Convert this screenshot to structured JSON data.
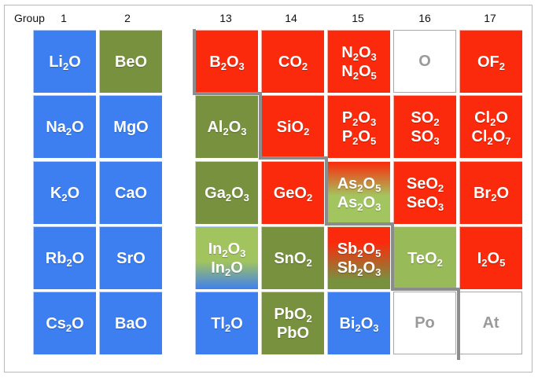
{
  "headers": {
    "group_label": "Group",
    "numbers": [
      "1",
      "2",
      "13",
      "14",
      "15",
      "16",
      "17"
    ]
  },
  "cells": [
    {
      "row": 0,
      "col": 0,
      "color": "blue",
      "lines": [
        [
          [
            "Li",
            ""
          ],
          [
            "",
            "2"
          ],
          [
            "O",
            ""
          ]
        ]
      ]
    },
    {
      "row": 0,
      "col": 1,
      "color": "green",
      "lines": [
        [
          [
            "BeO",
            ""
          ]
        ]
      ]
    },
    {
      "row": 0,
      "col": 2,
      "color": "red",
      "lines": [
        [
          [
            "B",
            ""
          ],
          [
            "",
            "2"
          ],
          [
            "O",
            ""
          ],
          [
            "",
            "3"
          ]
        ]
      ]
    },
    {
      "row": 0,
      "col": 3,
      "color": "red",
      "lines": [
        [
          [
            "CO",
            ""
          ],
          [
            "",
            "2"
          ]
        ]
      ]
    },
    {
      "row": 0,
      "col": 4,
      "color": "red",
      "lines": [
        [
          [
            "N",
            ""
          ],
          [
            "",
            "2"
          ],
          [
            "O",
            ""
          ],
          [
            "",
            "3"
          ]
        ],
        [
          [
            "N",
            ""
          ],
          [
            "",
            "2"
          ],
          [
            "O",
            ""
          ],
          [
            "",
            "5"
          ]
        ]
      ]
    },
    {
      "row": 0,
      "col": 5,
      "color": "white",
      "lines": [
        [
          [
            "O",
            ""
          ]
        ]
      ]
    },
    {
      "row": 0,
      "col": 6,
      "color": "red",
      "lines": [
        [
          [
            "OF",
            ""
          ],
          [
            "",
            "2"
          ]
        ]
      ]
    },
    {
      "row": 1,
      "col": 0,
      "color": "blue",
      "lines": [
        [
          [
            "Na",
            ""
          ],
          [
            "",
            "2"
          ],
          [
            "O",
            ""
          ]
        ]
      ]
    },
    {
      "row": 1,
      "col": 1,
      "color": "blue",
      "lines": [
        [
          [
            "MgO",
            ""
          ]
        ]
      ]
    },
    {
      "row": 1,
      "col": 2,
      "color": "green",
      "lines": [
        [
          [
            "Al",
            ""
          ],
          [
            "",
            "2"
          ],
          [
            "O",
            ""
          ],
          [
            "",
            "3"
          ]
        ]
      ]
    },
    {
      "row": 1,
      "col": 3,
      "color": "red",
      "lines": [
        [
          [
            "SiO",
            ""
          ],
          [
            "",
            "2"
          ]
        ]
      ]
    },
    {
      "row": 1,
      "col": 4,
      "color": "red",
      "lines": [
        [
          [
            "P",
            ""
          ],
          [
            "",
            "2"
          ],
          [
            "O",
            ""
          ],
          [
            "",
            "3"
          ]
        ],
        [
          [
            "P",
            ""
          ],
          [
            "",
            "2"
          ],
          [
            "O",
            ""
          ],
          [
            "",
            "5"
          ]
        ]
      ]
    },
    {
      "row": 1,
      "col": 5,
      "color": "red",
      "lines": [
        [
          [
            "SO",
            ""
          ],
          [
            "",
            "2"
          ]
        ],
        [
          [
            "SO",
            ""
          ],
          [
            "",
            "3"
          ]
        ]
      ]
    },
    {
      "row": 1,
      "col": 6,
      "color": "red",
      "lines": [
        [
          [
            "Cl",
            ""
          ],
          [
            "",
            "2"
          ],
          [
            "O",
            ""
          ]
        ],
        [
          [
            "Cl",
            ""
          ],
          [
            "",
            "2"
          ],
          [
            "O",
            ""
          ],
          [
            "",
            "7"
          ]
        ]
      ]
    },
    {
      "row": 2,
      "col": 0,
      "color": "blue",
      "lines": [
        [
          [
            "K",
            ""
          ],
          [
            "",
            "2"
          ],
          [
            "O",
            ""
          ]
        ]
      ]
    },
    {
      "row": 2,
      "col": 1,
      "color": "blue",
      "lines": [
        [
          [
            "CaO",
            ""
          ]
        ]
      ]
    },
    {
      "row": 2,
      "col": 2,
      "color": "green",
      "lines": [
        [
          [
            "Ga",
            ""
          ],
          [
            "",
            "2"
          ],
          [
            "O",
            ""
          ],
          [
            "",
            "3"
          ]
        ]
      ]
    },
    {
      "row": 2,
      "col": 3,
      "color": "red",
      "lines": [
        [
          [
            "GeO",
            ""
          ],
          [
            "",
            "2"
          ]
        ]
      ]
    },
    {
      "row": 2,
      "col": 4,
      "color": "grad-as",
      "lines": [
        [
          [
            "As",
            ""
          ],
          [
            "",
            "2"
          ],
          [
            "O",
            ""
          ],
          [
            "",
            "5"
          ]
        ],
        [
          [
            "As",
            ""
          ],
          [
            "",
            "2"
          ],
          [
            "O",
            ""
          ],
          [
            "",
            "3"
          ]
        ]
      ]
    },
    {
      "row": 2,
      "col": 5,
      "color": "red",
      "lines": [
        [
          [
            "SeO",
            ""
          ],
          [
            "",
            "2"
          ]
        ],
        [
          [
            "SeO",
            ""
          ],
          [
            "",
            "3"
          ]
        ]
      ]
    },
    {
      "row": 2,
      "col": 6,
      "color": "red",
      "lines": [
        [
          [
            "Br",
            ""
          ],
          [
            "",
            "2"
          ],
          [
            "O",
            ""
          ]
        ]
      ]
    },
    {
      "row": 3,
      "col": 0,
      "color": "blue",
      "lines": [
        [
          [
            "Rb",
            ""
          ],
          [
            "",
            "2"
          ],
          [
            "O",
            ""
          ]
        ]
      ]
    },
    {
      "row": 3,
      "col": 1,
      "color": "blue",
      "lines": [
        [
          [
            "SrO",
            ""
          ]
        ]
      ]
    },
    {
      "row": 3,
      "col": 2,
      "color": "grad-in",
      "lines": [
        [
          [
            "In",
            ""
          ],
          [
            "",
            "2"
          ],
          [
            "O",
            ""
          ],
          [
            "",
            "3"
          ]
        ],
        [
          [
            "In",
            ""
          ],
          [
            "",
            "2"
          ],
          [
            "O",
            ""
          ]
        ]
      ]
    },
    {
      "row": 3,
      "col": 3,
      "color": "green",
      "lines": [
        [
          [
            "SnO",
            ""
          ],
          [
            "",
            "2"
          ]
        ]
      ]
    },
    {
      "row": 3,
      "col": 4,
      "color": "grad-sb",
      "lines": [
        [
          [
            "Sb",
            ""
          ],
          [
            "",
            "2"
          ],
          [
            "O",
            ""
          ],
          [
            "",
            "5"
          ]
        ],
        [
          [
            "Sb",
            ""
          ],
          [
            "",
            "2"
          ],
          [
            "O",
            ""
          ],
          [
            "",
            "3"
          ]
        ]
      ]
    },
    {
      "row": 3,
      "col": 5,
      "color": "lightgreen",
      "lines": [
        [
          [
            "TeO",
            ""
          ],
          [
            "",
            "2"
          ]
        ]
      ]
    },
    {
      "row": 3,
      "col": 6,
      "color": "red",
      "lines": [
        [
          [
            "I",
            ""
          ],
          [
            "",
            "2"
          ],
          [
            "O",
            ""
          ],
          [
            "",
            "5"
          ]
        ]
      ]
    },
    {
      "row": 4,
      "col": 0,
      "color": "blue",
      "lines": [
        [
          [
            "Cs",
            ""
          ],
          [
            "",
            "2"
          ],
          [
            "O",
            ""
          ]
        ]
      ]
    },
    {
      "row": 4,
      "col": 1,
      "color": "blue",
      "lines": [
        [
          [
            "BaO",
            ""
          ]
        ]
      ]
    },
    {
      "row": 4,
      "col": 2,
      "color": "blue",
      "lines": [
        [
          [
            "Tl",
            ""
          ],
          [
            "",
            "2"
          ],
          [
            "O",
            ""
          ]
        ]
      ]
    },
    {
      "row": 4,
      "col": 3,
      "color": "green",
      "lines": [
        [
          [
            "PbO",
            ""
          ],
          [
            "",
            "2"
          ]
        ],
        [
          [
            "PbO",
            ""
          ]
        ]
      ]
    },
    {
      "row": 4,
      "col": 4,
      "color": "blue",
      "lines": [
        [
          [
            "Bi",
            ""
          ],
          [
            "",
            "2"
          ],
          [
            "O",
            ""
          ],
          [
            "",
            "3"
          ]
        ]
      ]
    },
    {
      "row": 4,
      "col": 5,
      "color": "white",
      "lines": [
        [
          [
            "Po",
            ""
          ]
        ]
      ]
    },
    {
      "row": 4,
      "col": 6,
      "color": "white",
      "lines": [
        [
          [
            "At",
            ""
          ]
        ]
      ]
    }
  ]
}
